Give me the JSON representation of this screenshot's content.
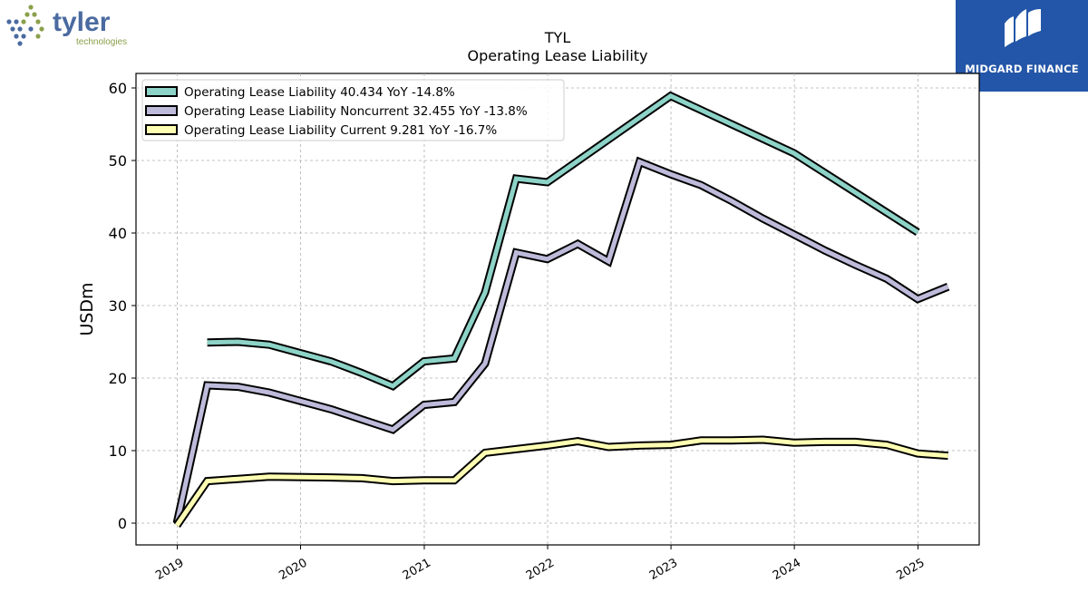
{
  "title": "TYL",
  "subtitle": "Operating Lease Liability",
  "logos": {
    "left": {
      "name": "tyler",
      "tagline": "technologies"
    },
    "right": {
      "name": "MIDGARD FINANCE",
      "color": "#2356a8"
    }
  },
  "chart_data": {
    "type": "line",
    "ylabel": "USDm",
    "xlabel": "",
    "ylim": [
      -3,
      62
    ],
    "yticks": [
      0,
      10,
      20,
      30,
      40,
      50,
      60
    ],
    "xlim": [
      "2018-09-01",
      "2025-07-01"
    ],
    "xticks": [
      {
        "label": "2019",
        "date": "2019-01-01"
      },
      {
        "label": "2020",
        "date": "2020-01-01"
      },
      {
        "label": "2021",
        "date": "2021-01-01"
      },
      {
        "label": "2022",
        "date": "2022-01-01"
      },
      {
        "label": "2023",
        "date": "2023-01-01"
      },
      {
        "label": "2024",
        "date": "2024-01-01"
      },
      {
        "label": "2025",
        "date": "2025-01-01"
      }
    ],
    "grid": true,
    "legend_position": "top-left",
    "series": [
      {
        "name": "Operating Lease Liability  40.434 YoY -14.8%",
        "color": "#8dd3c7",
        "points": [
          [
            "2019-03-31",
            24.9
          ],
          [
            "2019-06-30",
            25.0
          ],
          [
            "2019-09-30",
            24.6
          ],
          [
            "2020-03-31",
            22.3
          ],
          [
            "2020-06-30",
            20.7
          ],
          [
            "2020-09-30",
            18.9
          ],
          [
            "2020-12-31",
            22.3
          ],
          [
            "2021-03-31",
            22.7
          ],
          [
            "2021-06-30",
            31.8
          ],
          [
            "2021-09-30",
            47.5
          ],
          [
            "2021-12-31",
            47.0
          ],
          [
            "2022-12-31",
            58.9
          ],
          [
            "2023-12-31",
            51.0
          ],
          [
            "2024-12-31",
            40.1
          ]
        ]
      },
      {
        "name": "Operating Lease Liability Noncurrent  32.455 YoY -13.8%",
        "color": "#bebada",
        "points": [
          [
            "2018-12-31",
            0.0
          ],
          [
            "2019-03-31",
            19.0
          ],
          [
            "2019-06-30",
            18.8
          ],
          [
            "2019-09-30",
            18.0
          ],
          [
            "2020-03-31",
            15.7
          ],
          [
            "2020-06-30",
            14.3
          ],
          [
            "2020-09-30",
            12.9
          ],
          [
            "2020-12-31",
            16.3
          ],
          [
            "2021-03-31",
            16.7
          ],
          [
            "2021-06-30",
            22.0
          ],
          [
            "2021-09-30",
            37.3
          ],
          [
            "2021-12-31",
            36.4
          ],
          [
            "2022-03-31",
            38.5
          ],
          [
            "2022-06-30",
            36.1
          ],
          [
            "2022-09-30",
            49.8
          ],
          [
            "2022-12-31",
            48.1
          ],
          [
            "2023-03-31",
            46.6
          ],
          [
            "2023-06-30",
            44.4
          ],
          [
            "2023-09-30",
            42.0
          ],
          [
            "2023-12-31",
            39.8
          ],
          [
            "2024-03-31",
            37.6
          ],
          [
            "2024-06-30",
            35.6
          ],
          [
            "2024-09-30",
            33.7
          ],
          [
            "2024-12-31",
            30.9
          ],
          [
            "2025-03-31",
            32.6
          ]
        ]
      },
      {
        "name": "Operating Lease Liability Current  9.281 YoY -16.7%",
        "color": "#ffffb3",
        "points": [
          [
            "2018-12-31",
            -0.3
          ],
          [
            "2019-03-31",
            5.8
          ],
          [
            "2019-06-30",
            6.1
          ],
          [
            "2019-09-30",
            6.4
          ],
          [
            "2020-03-31",
            6.3
          ],
          [
            "2020-06-30",
            6.2
          ],
          [
            "2020-09-30",
            5.8
          ],
          [
            "2020-12-31",
            5.9
          ],
          [
            "2021-03-31",
            5.9
          ],
          [
            "2021-06-30",
            9.7
          ],
          [
            "2021-09-30",
            10.2
          ],
          [
            "2021-12-31",
            10.7
          ],
          [
            "2022-03-31",
            11.3
          ],
          [
            "2022-06-30",
            10.5
          ],
          [
            "2022-09-30",
            10.7
          ],
          [
            "2022-12-31",
            10.8
          ],
          [
            "2023-03-31",
            11.4
          ],
          [
            "2023-06-30",
            11.4
          ],
          [
            "2023-09-30",
            11.5
          ],
          [
            "2023-12-31",
            11.1
          ],
          [
            "2024-03-31",
            11.2
          ],
          [
            "2024-06-30",
            11.2
          ],
          [
            "2024-09-30",
            10.8
          ],
          [
            "2024-12-31",
            9.6
          ],
          [
            "2025-03-31",
            9.3
          ]
        ]
      }
    ]
  }
}
